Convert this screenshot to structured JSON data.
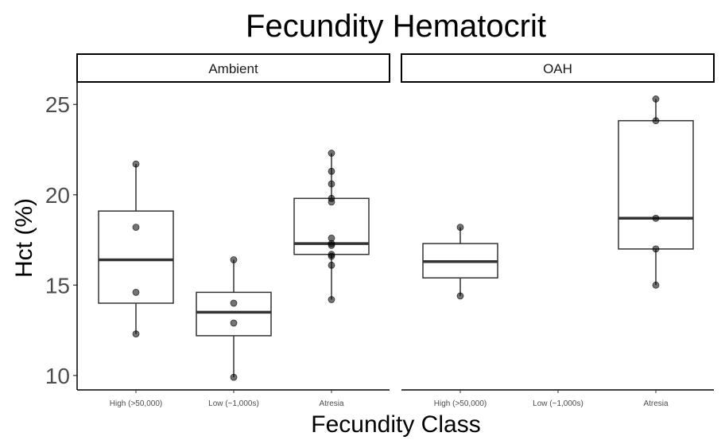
{
  "chart_data": {
    "type": "box",
    "title": "Fecundity Hematocrit",
    "xlabel": "Fecundity Class",
    "ylabel": "Hct (%)",
    "ylim": [
      9.2,
      26.2
    ],
    "yticks": [
      10,
      15,
      20,
      25
    ],
    "categories": [
      "High (>50,000)",
      "Low (~1,000s)",
      "Atresia"
    ],
    "facets": [
      {
        "label": "Ambient",
        "boxes": [
          {
            "category": "High (>50,000)",
            "min": 12.3,
            "q1": 14.0,
            "median": 16.4,
            "q3": 19.1,
            "max": 21.7,
            "points": [
              21.7,
              18.2,
              14.6,
              12.3
            ]
          },
          {
            "category": "Low (~1,000s)",
            "min": 9.9,
            "q1": 12.2,
            "median": 13.5,
            "q3": 14.6,
            "max": 16.4,
            "points": [
              16.4,
              14.0,
              12.9,
              9.9
            ]
          },
          {
            "category": "Atresia",
            "min": 14.2,
            "q1": 16.7,
            "median": 17.3,
            "q3": 19.8,
            "max": 22.3,
            "points": [
              22.3,
              21.3,
              20.6,
              19.8,
              19.6,
              17.6,
              17.3,
              17.2,
              16.7,
              16.6,
              16.1,
              14.2
            ]
          }
        ]
      },
      {
        "label": "OAH",
        "boxes": [
          {
            "category": "High (>50,000)",
            "min": 14.4,
            "q1": 15.4,
            "median": 16.3,
            "q3": 17.3,
            "max": 18.2,
            "points": [
              18.2,
              14.4
            ]
          },
          {
            "category": "Atresia",
            "min": 15.0,
            "q1": 17.0,
            "median": 18.7,
            "q3": 24.1,
            "max": 25.3,
            "points": [
              25.3,
              24.1,
              18.7,
              17.0,
              15.0
            ]
          }
        ]
      }
    ]
  }
}
